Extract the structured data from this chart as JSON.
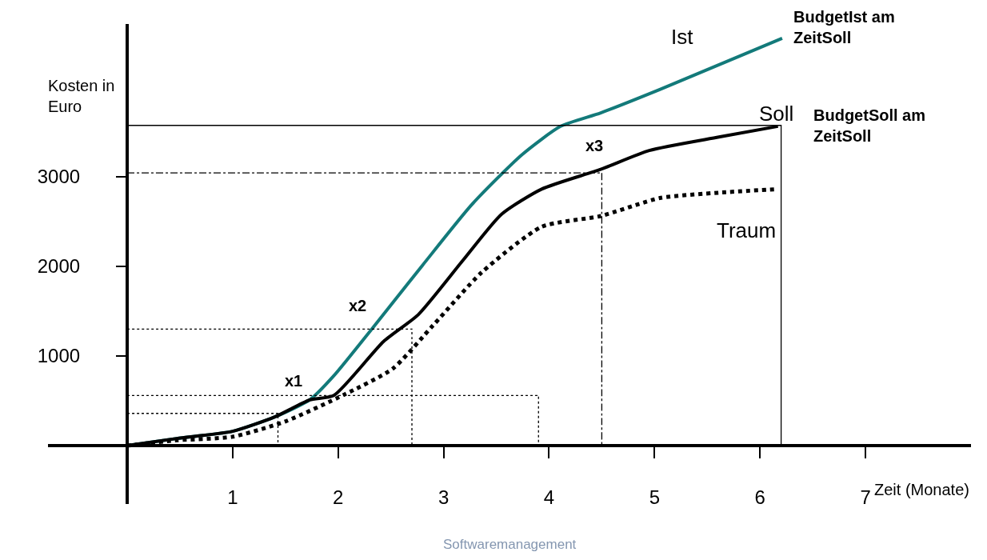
{
  "chart_data": {
    "type": "line",
    "xlabel": "Zeit (Monate)",
    "ylabel": "Kosten in Euro",
    "xlim": [
      -0.75,
      8.0
    ],
    "ylim": [
      -650,
      4700
    ],
    "xticks": [
      1,
      2,
      3,
      4,
      5,
      6,
      7
    ],
    "yticks": [
      1000,
      2000,
      3000
    ],
    "legend": false,
    "marker": "none",
    "series": [
      {
        "name": "Ist",
        "color": "#137a7a",
        "line_style": "solid",
        "x": [
          0,
          0.47,
          1,
          1.4,
          1.73,
          1.96,
          2.34,
          2.8,
          3.27,
          3.74,
          4.11,
          4.49,
          5.05,
          6.21
        ],
        "values": [
          0,
          80,
          160,
          320,
          510,
          780,
          1330,
          2010,
          2690,
          3240,
          3560,
          3710,
          3970,
          4540
        ]
      },
      {
        "name": "Soll",
        "color": "#000000",
        "line_style": "solid",
        "x": [
          0,
          0.47,
          1,
          1.4,
          1.73,
          1.96,
          2.43,
          2.76,
          3.18,
          3.55,
          3.93,
          4.49,
          4.95,
          5.61,
          6.17
        ],
        "values": [
          0,
          80,
          160,
          320,
          510,
          560,
          1160,
          1460,
          2060,
          2580,
          2860,
          3080,
          3290,
          3440,
          3560
        ]
      },
      {
        "name": "Traum",
        "color": "#000000",
        "line_style": "dotted",
        "x": [
          0,
          0.47,
          1,
          1.5,
          2.06,
          2.52,
          2.9,
          3.36,
          3.93,
          4.49,
          5.05,
          5.61,
          6.17
        ],
        "values": [
          0,
          60,
          100,
          270,
          570,
          860,
          1340,
          1930,
          2440,
          2560,
          2760,
          2820,
          2860
        ]
      },
      {
        "color": "#000000",
        "line_style": "solid",
        "x": [
          0,
          6.2,
          6.2
        ],
        "values": [
          3570,
          3570,
          0
        ]
      },
      {
        "color": "#000000",
        "line_style": "dashed",
        "x": [
          0,
          4.5,
          4.5
        ],
        "values": [
          3040,
          3040,
          0
        ]
      },
      {
        "color": "#000000",
        "line_style": "dotted",
        "x": [
          0,
          2.7,
          2.7
        ],
        "values": [
          1300,
          1300,
          0
        ]
      },
      {
        "color": "#000000",
        "line_style": "dotted",
        "x": [
          0,
          3.9,
          3.9
        ],
        "values": [
          560,
          560,
          0
        ]
      },
      {
        "color": "#000000",
        "line_style": "dotted",
        "x": [
          0,
          1.43,
          1.43
        ],
        "values": [
          360,
          360,
          0
        ]
      }
    ],
    "annotations": [
      {
        "text": "x1",
        "x": 1.73,
        "y": 510
      },
      {
        "text": "x2",
        "x": 2.34,
        "y": 1330
      },
      {
        "text": "x3",
        "x": 4.49,
        "y": 3080
      },
      {
        "text": "BudgetIst am\nZeitSoll",
        "x": 6.21,
        "y": 4540
      },
      {
        "text": "BudgetSoll am\nZeitSoll",
        "x": 6.2,
        "y": 3570
      },
      "Softwaremanagement"
    ]
  }
}
